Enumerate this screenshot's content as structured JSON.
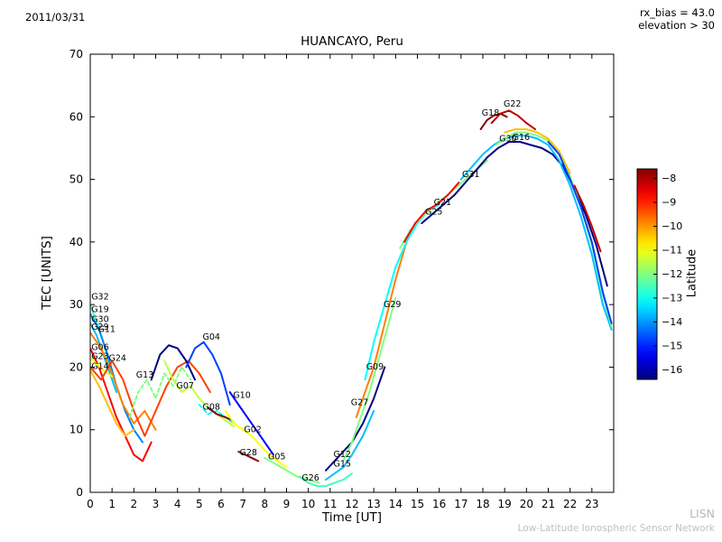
{
  "header": {
    "date": "2011/03/31",
    "rx_bias": "rx_bias = 43.0",
    "elevation": "elevation > 30"
  },
  "watermark": {
    "line1": "LISN",
    "line2": "Low-Latitude Ionospheric Sensor Network"
  },
  "chart_data": {
    "type": "line",
    "title": "HUANCAYO, Peru",
    "xlabel": "Time [UT]",
    "ylabel": "TEC [UNITS]",
    "xlim": [
      0,
      24
    ],
    "ylim": [
      0,
      70
    ],
    "x_ticks": [
      0,
      1,
      2,
      3,
      4,
      5,
      6,
      7,
      8,
      9,
      10,
      11,
      12,
      13,
      14,
      15,
      16,
      17,
      18,
      19,
      20,
      21,
      22,
      23
    ],
    "y_ticks": [
      0,
      10,
      20,
      30,
      40,
      50,
      60,
      70
    ],
    "grid": false,
    "legend": "none",
    "colorbar": {
      "label": "Latitude",
      "vmin": -16,
      "vmax": -8,
      "ticks": [
        -8,
        -9,
        -10,
        -11,
        -12,
        -13,
        -14,
        -15,
        -16
      ]
    },
    "series": [
      {
        "name": "G32",
        "lat": -12.5,
        "x": [
          0,
          0.3,
          0.6,
          0.9,
          1.2,
          1.5
        ],
        "y": [
          30,
          27,
          24,
          20,
          17,
          14
        ]
      },
      {
        "name": "G19",
        "lat": -14,
        "x": [
          0,
          0.4,
          0.8,
          1.2,
          1.6,
          2.0,
          2.4
        ],
        "y": [
          28.5,
          26,
          22,
          17,
          13,
          10,
          8
        ]
      },
      {
        "name": "G30",
        "lat": -13.5,
        "x": [
          0,
          0.3,
          0.6,
          0.9,
          1.2
        ],
        "y": [
          27,
          25,
          22,
          19,
          16
        ]
      },
      {
        "name": "G11",
        "lat": -10,
        "x": [
          0,
          0.5,
          1.0,
          1.5,
          2.0,
          2.5,
          3.0
        ],
        "y": [
          25.5,
          23,
          19,
          14,
          11,
          13,
          10
        ]
      },
      {
        "name": "G06",
        "lat": -9,
        "x": [
          0,
          0.4,
          0.8,
          1.2,
          1.6,
          2.0,
          2.4,
          2.8
        ],
        "y": [
          23,
          20,
          16,
          12,
          9,
          6,
          5,
          8
        ]
      },
      {
        "name": "G23",
        "lat": -11,
        "x": [
          0,
          0.3,
          0.6,
          1.0
        ],
        "y": [
          21.5,
          20.5,
          19.5,
          18.5
        ]
      },
      {
        "name": "G24",
        "lat": -9.5,
        "x": [
          0,
          0.5,
          1.0,
          1.5,
          2.0,
          2.5,
          3.0,
          3.5,
          4.0,
          4.5,
          5.0,
          5.5
        ],
        "y": [
          20,
          18,
          21,
          18,
          13,
          9,
          13,
          17,
          20,
          21,
          19,
          16
        ]
      },
      {
        "name": "G14",
        "lat": -10.5,
        "x": [
          0,
          0.4,
          0.8,
          1.2,
          1.6,
          2.0
        ],
        "y": [
          19.5,
          17,
          14,
          11,
          9,
          10
        ]
      },
      {
        "name": "G13",
        "lat": -12,
        "dashed": true,
        "x": [
          1.8,
          2.2,
          2.6,
          3.0,
          3.4,
          3.8,
          4.2,
          4.6
        ],
        "y": [
          12,
          16,
          18,
          15,
          19,
          17,
          20,
          18
        ]
      },
      {
        "name": "",
        "lat": -16,
        "x": [
          2.8,
          3.2,
          3.6,
          4.0,
          4.4,
          4.8
        ],
        "y": [
          18,
          22,
          23.5,
          23,
          21,
          18
        ]
      },
      {
        "name": "G07",
        "lat": -11.5,
        "x": [
          3.4,
          3.8,
          4.2,
          4.6,
          5.0,
          5.4,
          5.8,
          6.2,
          6.6
        ],
        "y": [
          21,
          18,
          16,
          17,
          15,
          13.5,
          12.5,
          11.5,
          10.5
        ]
      },
      {
        "name": "G04",
        "lat": -14.5,
        "x": [
          4.4,
          4.8,
          5.2,
          5.6,
          6.0,
          6.4
        ],
        "y": [
          20,
          23,
          24,
          22,
          19,
          14
        ]
      },
      {
        "name": "G08",
        "lat": -13,
        "dashed": true,
        "x": [
          5.0,
          5.4,
          5.8,
          6.2,
          6.6
        ],
        "y": [
          14,
          12.5,
          13,
          12,
          11
        ]
      },
      {
        "name": "",
        "lat": -8,
        "x": [
          5.4,
          5.8,
          6.2,
          6.5
        ],
        "y": [
          13.5,
          12.5,
          12,
          11.5
        ]
      },
      {
        "name": "G10",
        "lat": -15,
        "x": [
          6.4,
          6.8,
          7.2,
          7.6,
          8.0,
          8.4
        ],
        "y": [
          16,
          14,
          12,
          10,
          8,
          6
        ]
      },
      {
        "name": "G02",
        "lat": -11,
        "x": [
          6.2,
          6.6,
          7.0,
          7.4,
          7.8,
          8.2,
          8.6,
          9.0
        ],
        "y": [
          13,
          11,
          10,
          9,
          7.5,
          6,
          5,
          4
        ]
      },
      {
        "name": "G28",
        "lat": -8,
        "x": [
          6.8,
          7.1,
          7.4,
          7.7
        ],
        "y": [
          6.5,
          6,
          5.5,
          5
        ]
      },
      {
        "name": "G05",
        "lat": -12,
        "x": [
          8.0,
          8.5,
          9.0,
          9.5,
          10.0,
          10.5
        ],
        "y": [
          5.5,
          4.5,
          3.5,
          2.5,
          2,
          1.5
        ]
      },
      {
        "name": "G26",
        "lat": -12.5,
        "x": [
          9.6,
          10.0,
          10.4,
          10.8,
          11.2,
          11.6,
          12.0
        ],
        "y": [
          2.5,
          1.5,
          1,
          1,
          1.5,
          2,
          3
        ]
      },
      {
        "name": "G15",
        "lat": -13.5,
        "x": [
          10.8,
          11.2,
          11.6,
          12.0,
          12.5,
          13.0
        ],
        "y": [
          2,
          3,
          4,
          6,
          9,
          13
        ]
      },
      {
        "name": "G12",
        "lat": -16,
        "x": [
          10.8,
          11.2,
          11.6,
          12.0,
          12.5,
          13.0,
          13.5
        ],
        "y": [
          3.5,
          5,
          6.5,
          8,
          11,
          15,
          20
        ]
      },
      {
        "name": "G27",
        "lat": -12,
        "x": [
          11.6,
          12.0,
          12.4,
          12.8,
          13.2,
          13.6,
          14.0
        ],
        "y": [
          5,
          8,
          12,
          16,
          21,
          26,
          31
        ]
      },
      {
        "name": "G09",
        "lat": -10,
        "x": [
          12.2,
          12.6,
          13.0,
          13.5,
          14.0,
          14.5
        ],
        "y": [
          12,
          16,
          20,
          27,
          34,
          40
        ]
      },
      {
        "name": "G29",
        "lat": -13,
        "x": [
          12.6,
          13.0,
          13.5,
          14.0,
          14.5,
          15.0,
          15.5,
          16.0
        ],
        "y": [
          18,
          24,
          30,
          36,
          40,
          43,
          45,
          46
        ]
      },
      {
        "name": "G25",
        "lat": -12,
        "x": [
          14.2,
          14.7,
          15.2,
          15.7,
          16.2,
          16.7,
          17.2,
          17.7,
          18.2
        ],
        "y": [
          39,
          42,
          44,
          45.5,
          47,
          48.5,
          50,
          51.5,
          53
        ]
      },
      {
        "name": "G21",
        "lat": -9,
        "x": [
          14.4,
          14.9,
          15.4,
          15.9,
          16.4,
          16.9
        ],
        "y": [
          40,
          43,
          45,
          46,
          47.5,
          49.5
        ]
      },
      {
        "name": "G31",
        "lat": -16,
        "x": [
          15.2,
          15.7,
          16.2,
          16.7,
          17.2,
          17.7,
          18.2,
          18.7,
          19.2,
          19.7,
          20.2,
          20.7,
          21.2,
          21.7,
          22.2,
          22.7,
          23.2,
          23.7
        ],
        "y": [
          43,
          44.5,
          46,
          47.5,
          49.5,
          51.5,
          53.5,
          55,
          56,
          56,
          55.5,
          55,
          54,
          52,
          48.5,
          44.5,
          39.5,
          33
        ]
      },
      {
        "name": "G18",
        "lat": -8,
        "x": [
          17.9,
          18.2,
          18.5,
          18.8,
          19.1
        ],
        "y": [
          58,
          59.5,
          60.2,
          60.5,
          60
        ]
      },
      {
        "name": "G22",
        "lat": -8.5,
        "x": [
          18.4,
          18.8,
          19.2,
          19.6,
          20.0,
          20.4
        ],
        "y": [
          59,
          60.5,
          61,
          60.2,
          59,
          58
        ]
      },
      {
        "name": "G30",
        "lat": -13.5,
        "x": [
          17.0,
          17.5,
          18.0,
          18.5,
          19.0,
          19.5,
          20.0,
          20.5,
          21.0,
          21.5,
          22.0,
          22.5,
          23.0,
          23.5,
          23.9
        ],
        "y": [
          50,
          52,
          54,
          55.5,
          56.5,
          57,
          57,
          56.5,
          55.5,
          53,
          49,
          44,
          38,
          30,
          26
        ]
      },
      {
        "name": "G16",
        "lat": -12,
        "x": [
          18.6,
          19.0,
          19.5,
          20.0,
          20.5,
          21.0,
          21.5,
          22.0,
          22.5,
          23.0,
          23.5,
          23.9
        ],
        "y": [
          55.5,
          56.5,
          57.5,
          57.5,
          57,
          56.2,
          54.5,
          50.5,
          45.5,
          39.5,
          31.5,
          26.5
        ]
      },
      {
        "name": "",
        "lat": -10.5,
        "x": [
          19.0,
          19.5,
          20.0,
          20.5,
          21.0,
          21.5,
          22.0
        ],
        "y": [
          57.5,
          58,
          58,
          57.5,
          56.5,
          54.5,
          51
        ]
      },
      {
        "name": "",
        "lat": -8.5,
        "x": [
          22.2,
          22.6,
          23.0,
          23.4
        ],
        "y": [
          49,
          46,
          42.5,
          38.5
        ]
      },
      {
        "name": "",
        "lat": -14.5,
        "x": [
          21.0,
          21.5,
          22.0,
          22.5,
          23.0,
          23.5,
          23.9
        ],
        "y": [
          56,
          54,
          50,
          45.5,
          40,
          32,
          27
        ]
      }
    ],
    "annotations": [
      {
        "text": "G32",
        "x": 0.05,
        "y": 30.8
      },
      {
        "text": "G19",
        "x": 0.05,
        "y": 28.8
      },
      {
        "text": "G30",
        "x": 0.05,
        "y": 27.2
      },
      {
        "text": "G29",
        "x": 0.05,
        "y": 26.0
      },
      {
        "text": "G11",
        "x": 0.35,
        "y": 25.6
      },
      {
        "text": "G06",
        "x": 0.05,
        "y": 22.7
      },
      {
        "text": "G23",
        "x": 0.05,
        "y": 21.3
      },
      {
        "text": "G24",
        "x": 0.85,
        "y": 21.0
      },
      {
        "text": "G14",
        "x": 0.05,
        "y": 19.7
      },
      {
        "text": "G13",
        "x": 2.1,
        "y": 18.3
      },
      {
        "text": "G04",
        "x": 5.15,
        "y": 24.4
      },
      {
        "text": "G07",
        "x": 3.95,
        "y": 16.6
      },
      {
        "text": "G08",
        "x": 5.15,
        "y": 13.2
      },
      {
        "text": "G10",
        "x": 6.55,
        "y": 15.1
      },
      {
        "text": "G02",
        "x": 7.05,
        "y": 9.6
      },
      {
        "text": "G28",
        "x": 6.85,
        "y": 5.9
      },
      {
        "text": "G05",
        "x": 8.15,
        "y": 5.3
      },
      {
        "text": "G26",
        "x": 9.7,
        "y": 1.9
      },
      {
        "text": "G12",
        "x": 11.15,
        "y": 5.6
      },
      {
        "text": "G15",
        "x": 11.15,
        "y": 4.1
      },
      {
        "text": "G27",
        "x": 11.95,
        "y": 13.9
      },
      {
        "text": "G09",
        "x": 12.65,
        "y": 19.6
      },
      {
        "text": "G29",
        "x": 13.45,
        "y": 29.6
      },
      {
        "text": "G25",
        "x": 15.35,
        "y": 44.4
      },
      {
        "text": "G21",
        "x": 15.75,
        "y": 45.9
      },
      {
        "text": "G31",
        "x": 17.05,
        "y": 50.4
      },
      {
        "text": "G18",
        "x": 17.95,
        "y": 60.2
      },
      {
        "text": "G22",
        "x": 18.95,
        "y": 61.6
      },
      {
        "text": "G30",
        "x": 18.75,
        "y": 56.1
      },
      {
        "text": "G16",
        "x": 19.35,
        "y": 56.3
      }
    ]
  }
}
